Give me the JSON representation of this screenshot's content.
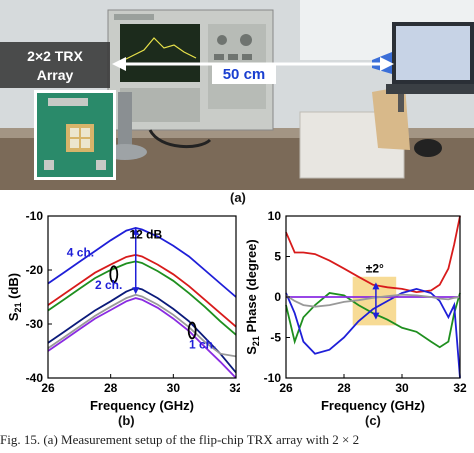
{
  "photo": {
    "array_label": "2×2 TRX\nArray",
    "distance_label": "50 cm",
    "colors": {
      "sky": "#d8dde0",
      "bench": "#7b6a58",
      "label_box": "#3b3b3b",
      "arrow": "#ffffff",
      "distance_text": "#1a3fd0"
    }
  },
  "figure_labels": {
    "a": "(a)",
    "b": "(b)",
    "c": "(c)"
  },
  "caption": "Fig. 15.    (a) Measurement setup of the flip-chip TRX array with 2 × 2",
  "chart_data": [
    {
      "type": "line",
      "panel": "b",
      "xlabel": "Frequency (GHz)",
      "ylabel": "S21 (dB)",
      "xlim": [
        26,
        32
      ],
      "ylim": [
        -40,
        -10
      ],
      "xticks": [
        26,
        28,
        30,
        32
      ],
      "yticks": [
        -10,
        -20,
        -30,
        -40
      ],
      "grid": false,
      "x": [
        26,
        26.5,
        27,
        27.5,
        28,
        28.5,
        28.8,
        29,
        29.5,
        30,
        30.5,
        31,
        31.5,
        32
      ],
      "series": [
        {
          "color": "#1f1fd8",
          "values": [
            -22.5,
            -20.5,
            -18.5,
            -16.5,
            -14.5,
            -12.7,
            -12.2,
            -12.5,
            -13.8,
            -15.5,
            -17.5,
            -20.0,
            -22.5,
            -25.0
          ]
        },
        {
          "color": "#d81b1b",
          "values": [
            -26.5,
            -24.5,
            -22.5,
            -20.5,
            -19.0,
            -17.6,
            -17.2,
            -17.5,
            -19.0,
            -20.8,
            -23.0,
            -25.5,
            -28.0,
            -30.5
          ]
        },
        {
          "color": "#1f8f1f",
          "values": [
            -27.5,
            -25.5,
            -23.5,
            -21.5,
            -20.0,
            -18.8,
            -18.4,
            -18.7,
            -20.2,
            -22.0,
            -24.3,
            -26.8,
            -29.5,
            -32.0
          ]
        },
        {
          "color": "#0b1a7a",
          "values": [
            -33.5,
            -31.5,
            -29.5,
            -27.5,
            -25.8,
            -24.0,
            -23.3,
            -23.6,
            -25.2,
            -27.2,
            -29.5,
            -32.5,
            -35.5,
            -39.0
          ]
        },
        {
          "color": "#8a2be2",
          "values": [
            -35.0,
            -33.0,
            -31.0,
            -29.0,
            -27.4,
            -25.8,
            -25.2,
            -25.5,
            -27.0,
            -29.0,
            -31.3,
            -34.2,
            -37.0,
            -40.0
          ]
        },
        {
          "color": "#999999",
          "values": [
            -34.5,
            -32.5,
            -30.5,
            -28.5,
            -26.8,
            -25.2,
            -24.6,
            -24.9,
            -26.4,
            -28.3,
            -30.6,
            -33.3,
            -35.5,
            -36.0
          ]
        }
      ],
      "annotations": [
        {
          "text": "4 ch.",
          "x": 26.6,
          "y": -17.5,
          "color": "#1f1fd8"
        },
        {
          "text": "2 ch.",
          "x": 27.5,
          "y": -23.5,
          "color": "#1f1fd8"
        },
        {
          "text": "1 ch.",
          "x": 30.5,
          "y": -34.5,
          "color": "#1f1fd8"
        },
        {
          "text": "12 dB",
          "x": 28.6,
          "y": -14.2,
          "color": "#000000"
        }
      ],
      "arrow": {
        "x": 28.8,
        "y1": -12.2,
        "y2": -24.5,
        "color": "#1f1fd8"
      },
      "ellipses": [
        {
          "x": 28.1,
          "y": -20.8,
          "color": "#000000"
        },
        {
          "x": 30.6,
          "y": -31.2,
          "color": "#000000"
        }
      ]
    },
    {
      "type": "line",
      "panel": "c",
      "xlabel": "Frequency (GHz)",
      "ylabel": "S21 Phase (degree)",
      "xlim": [
        26,
        32
      ],
      "ylim": [
        -10,
        10
      ],
      "xticks": [
        26,
        28,
        30,
        32
      ],
      "yticks": [
        10,
        5,
        0,
        -5,
        -10
      ],
      "grid": false,
      "x": [
        26,
        26.3,
        26.6,
        27,
        27.5,
        28,
        28.5,
        29,
        29.5,
        30,
        30.5,
        31,
        31.3,
        31.6,
        31.8,
        32
      ],
      "series": [
        {
          "color": "#d81b1b",
          "values": [
            8.0,
            5.5,
            5.5,
            5.3,
            4.5,
            3.5,
            2.5,
            1.5,
            1.2,
            1.0,
            0.6,
            0.8,
            1.5,
            3.5,
            6.5,
            10.0
          ]
        },
        {
          "color": "#1f8f1f",
          "values": [
            -1.0,
            -5.5,
            -2.5,
            -1.0,
            0.5,
            0.2,
            -1.0,
            -2.0,
            -2.8,
            -3.8,
            -4.3,
            -5.5,
            -6.2,
            -5.5,
            -2.0,
            0.5
          ]
        },
        {
          "color": "#1f1fd8",
          "values": [
            0.5,
            -2.0,
            -5.5,
            -7.0,
            -6.5,
            -5.0,
            -3.0,
            -1.5,
            -0.5,
            0.5,
            1.0,
            0.5,
            -0.5,
            -2.5,
            -1.0,
            -10.0
          ]
        },
        {
          "color": "#8a2be2",
          "values": [
            0.0,
            0.0,
            0.0,
            0.0,
            0.0,
            0.0,
            0.0,
            0.0,
            0.0,
            0.0,
            0.0,
            0.0,
            0.0,
            0.0,
            0.0,
            0.0
          ]
        },
        {
          "color": "#999999",
          "values": [
            0.2,
            -0.5,
            -1.0,
            -1.2,
            -1.0,
            -0.6,
            -0.4,
            -0.1,
            0.1,
            0.3,
            0.2,
            0.0,
            -0.2,
            -0.3,
            -0.1,
            0.0
          ]
        }
      ],
      "highlight": {
        "x1": 28.3,
        "x2": 29.8,
        "y1": -3.5,
        "y2": 2.5,
        "color": "#f5d27a"
      },
      "annotations": [
        {
          "text": "±2°",
          "x": 28.75,
          "y": 3.0,
          "color": "#000000"
        }
      ],
      "arrow": {
        "x": 29.1,
        "y1": 1.8,
        "y2": -2.8,
        "color": "#1f1fd8"
      }
    }
  ]
}
